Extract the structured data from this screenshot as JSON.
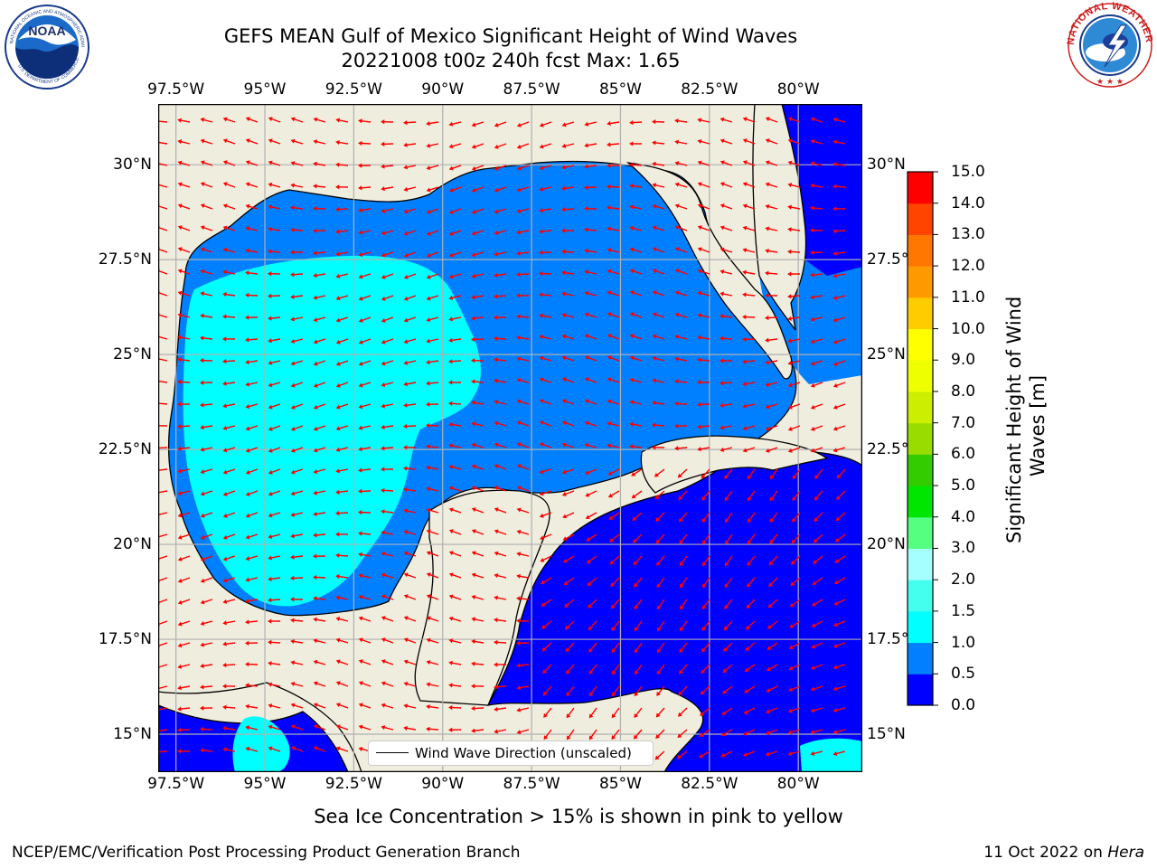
{
  "header": {
    "title_line1": "GEFS MEAN Gulf of Mexico Significant Height of Wind Waves",
    "title_line2": "20221008 t00z 240h fcst   Max: 1.65"
  },
  "logos": {
    "left": "noaa-logo",
    "right": "national-weather-service-logo",
    "left_ring_text": "NATIONAL OCEANIC AND ATMOSPHERIC ADMINISTRATION",
    "left_ring_text2": "U.S. DEPARTMENT OF COMMERCE",
    "left_center_text": "NOAA",
    "right_ring_text": "NATIONAL WEATHER SERVICE"
  },
  "map": {
    "lon_ticks_top": [
      "97.5°W",
      "95°W",
      "92.5°W",
      "90°W",
      "87.5°W",
      "85°W",
      "82.5°W",
      "80°W"
    ],
    "lon_ticks_bottom": [
      "97.5°W",
      "95°W",
      "92.5°W",
      "90°W",
      "87.5°W",
      "85°W",
      "82.5°W",
      "80°W"
    ],
    "lat_ticks_left": [
      "30°N",
      "27.5°N",
      "25°N",
      "22.5°N",
      "20°N",
      "17.5°N",
      "15°N"
    ],
    "lat_ticks_right": [
      "30°N",
      "27.5°N",
      "25°N",
      "22.5°N",
      "20°N",
      "17.5°N",
      "15°N"
    ],
    "extent": {
      "lon": [
        -98,
        -78.2
      ],
      "lat": [
        14,
        31.6
      ]
    },
    "colors": {
      "land": "#efedde",
      "ocean_low": "#0000ff",
      "ocean_mid": "#0080ff",
      "ocean_high": "#00ffff",
      "arrow": "#ff0000",
      "grid": "#b0b0b0"
    },
    "legend_label": "Wind Wave Direction (unscaled)"
  },
  "colorbar": {
    "label_line1": "Significant Height of Wind",
    "label_line2": "Waves [m]",
    "tick_labels": [
      "0.0",
      "0.5",
      "1.0",
      "1.5",
      "2.0",
      "3.0",
      "4.0",
      "5.0",
      "6.0",
      "7.0",
      "8.0",
      "9.0",
      "10.0",
      "11.0",
      "12.0",
      "13.0",
      "14.0",
      "15.0"
    ],
    "colors": [
      "#0000ff",
      "#0080ff",
      "#00ffff",
      "#44ffee",
      "#a6ffff",
      "#55ff80",
      "#00e600",
      "#33cc00",
      "#99dd00",
      "#ccee00",
      "#eeff00",
      "#ffff00",
      "#ffcc00",
      "#ff9900",
      "#ff7700",
      "#ff4400",
      "#ff0000"
    ]
  },
  "subtitle": "Sea Ice Concentration > 15% is shown in pink to yellow",
  "footer": {
    "left": "NCEP/EMC/Verification Post Processing Product Generation Branch",
    "right_date": "11 Oct 2022 on ",
    "right_machine": "Hera"
  }
}
